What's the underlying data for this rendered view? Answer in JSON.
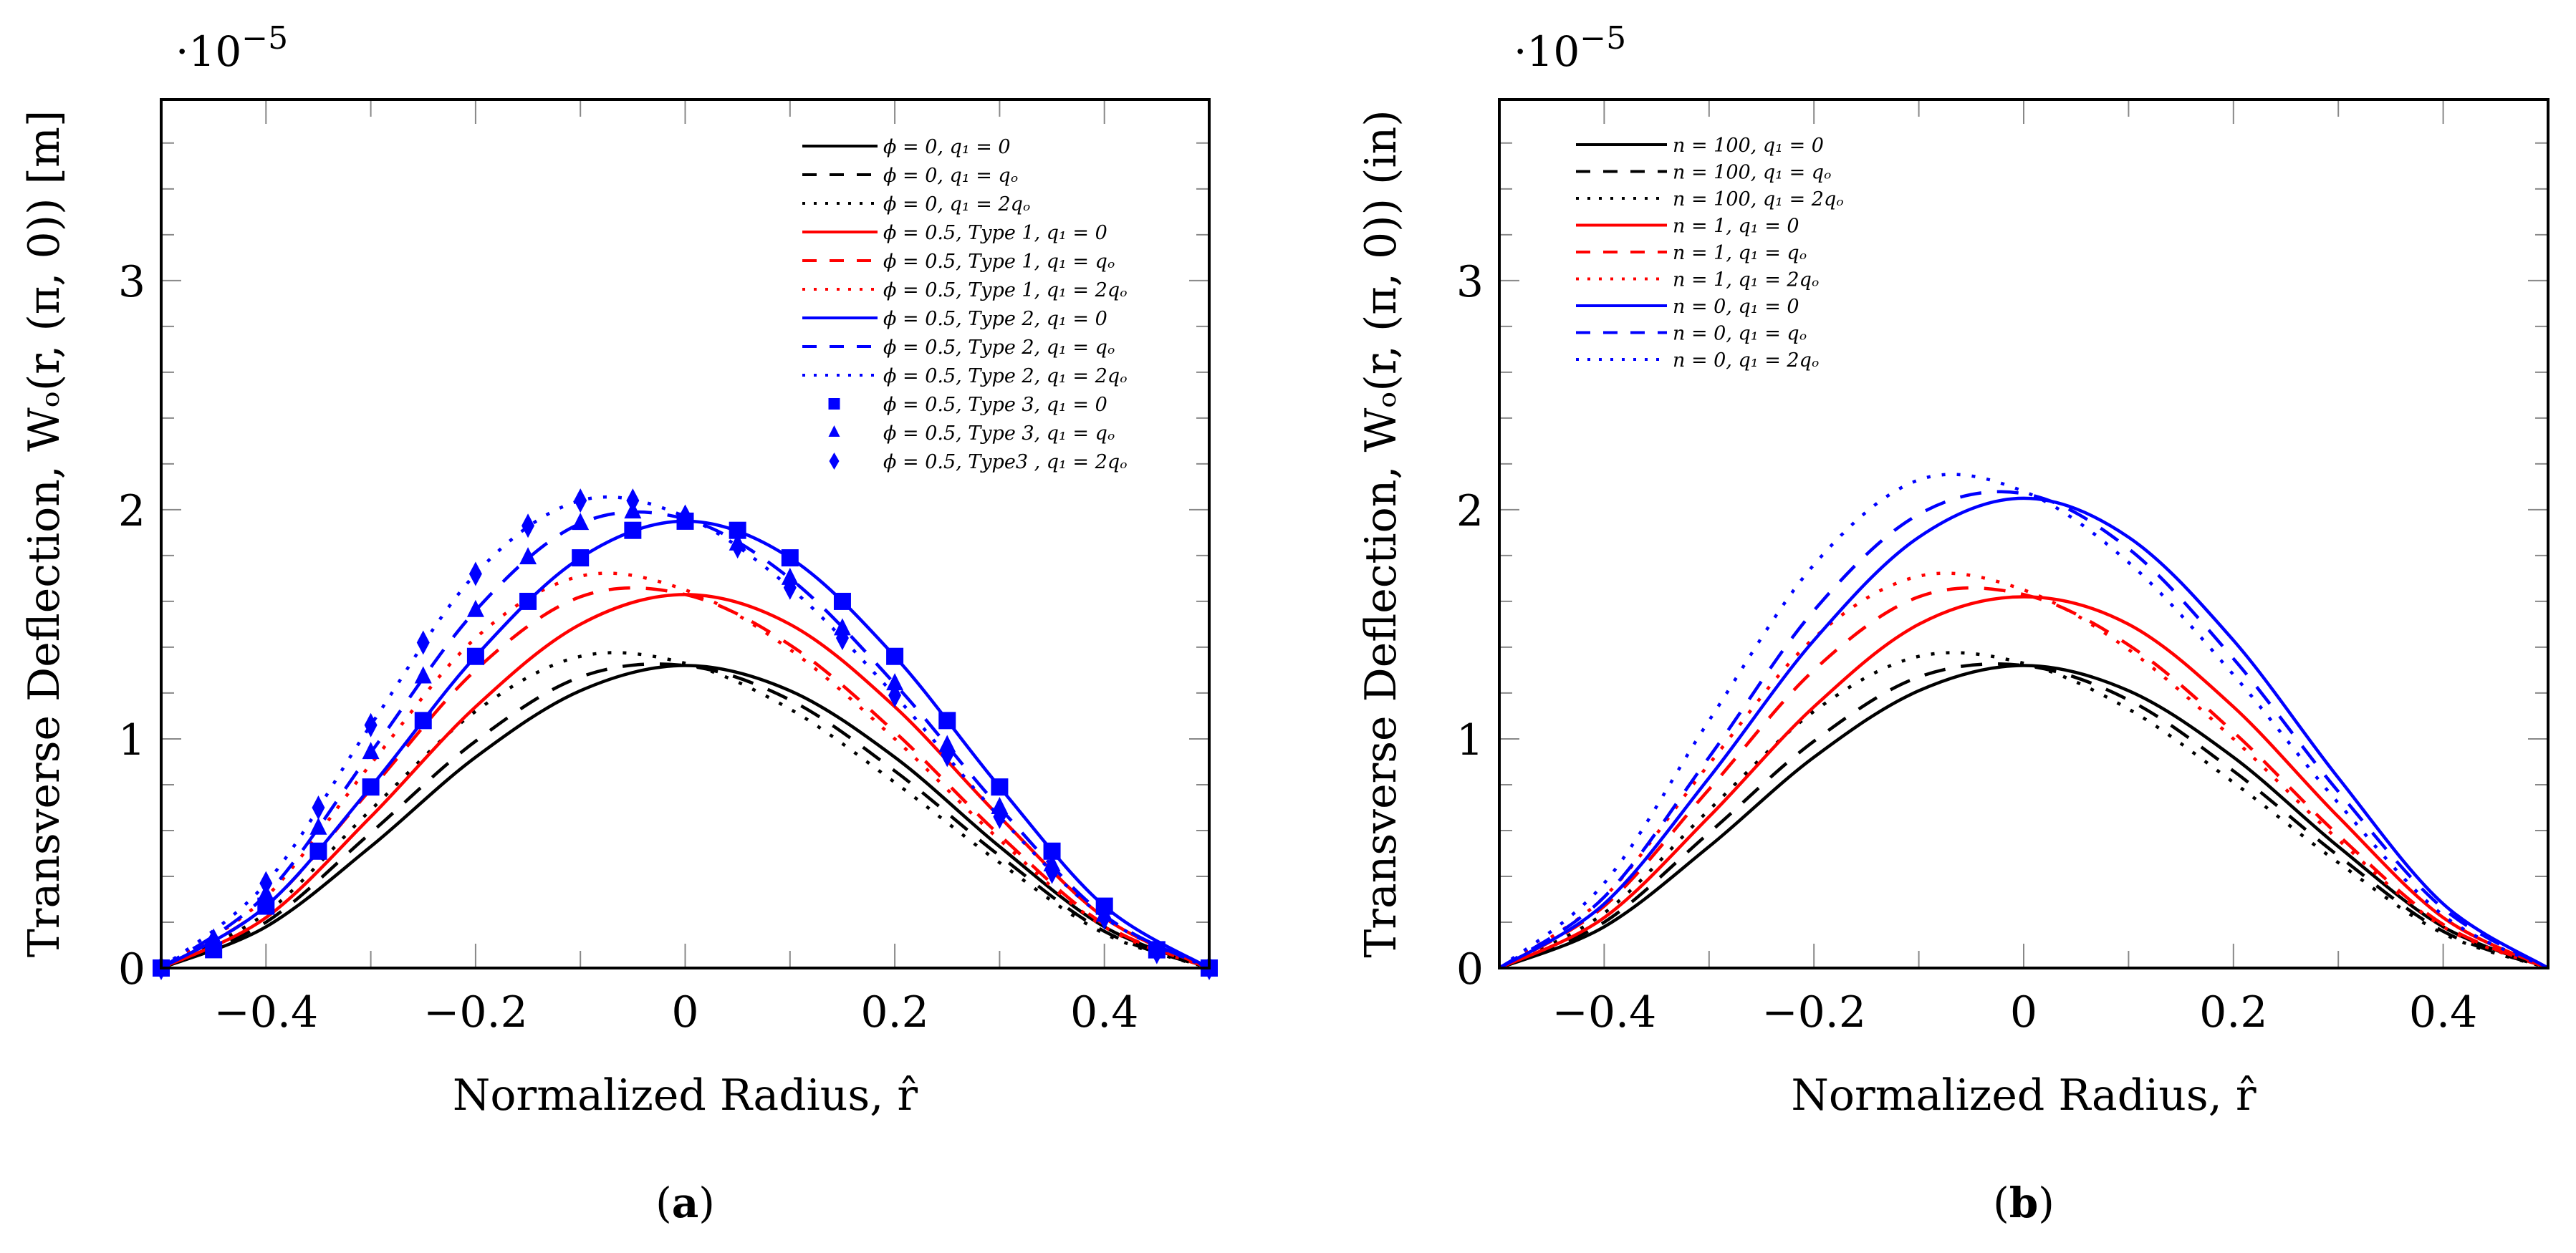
{
  "chart_data": [
    {
      "type": "line",
      "caption_letter": "a",
      "exponent_label": "·10",
      "exponent_power": "−5",
      "xlabel": "Normalized Radius, r̂",
      "ylabel": "Transverse Deflection, Wₒ(r, (π, 0)) [m]",
      "xlim": [
        -0.5,
        0.5
      ],
      "ylim": [
        0,
        3.79
      ],
      "xticks": [
        -0.4,
        -0.2,
        0,
        0.2,
        0.4
      ],
      "xtick_labels": [
        "−0.4",
        "−0.2",
        "0",
        "0.2",
        "0.4"
      ],
      "yticks": [
        0,
        1,
        2,
        3
      ],
      "ytick_labels": [
        "0",
        "1",
        "2",
        "3"
      ],
      "legend_position": "top-right",
      "x": [
        -0.5,
        -0.4,
        -0.3,
        -0.2,
        -0.1,
        0,
        0.1,
        0.2,
        0.3,
        0.4,
        0.5
      ],
      "series": [
        {
          "name": "ϕ = 0, q₁ = 0",
          "color": "#000000",
          "style": "solid",
          "y": [
            0,
            0.18,
            0.53,
            0.92,
            1.21,
            1.32,
            1.21,
            0.92,
            0.53,
            0.18,
            0
          ]
        },
        {
          "name": "ϕ = 0, q₁ = qₒ",
          "color": "#000000",
          "style": "dashed",
          "y": [
            0,
            0.2,
            0.59,
            0.99,
            1.27,
            1.32,
            1.17,
            0.86,
            0.49,
            0.16,
            0
          ]
        },
        {
          "name": "ϕ = 0, q₁ = 2qₒ",
          "color": "#000000",
          "style": "dotted",
          "y": [
            0,
            0.24,
            0.69,
            1.12,
            1.36,
            1.33,
            1.13,
            0.81,
            0.46,
            0.15,
            0
          ]
        },
        {
          "name": "ϕ = 0.5, Type 1, q₁ = 0",
          "color": "#ff0000",
          "style": "solid",
          "y": [
            0,
            0.22,
            0.66,
            1.14,
            1.5,
            1.63,
            1.5,
            1.14,
            0.66,
            0.22,
            0
          ]
        },
        {
          "name": "ϕ = 0.5, Type 1, q₁ = qₒ",
          "color": "#ff0000",
          "style": "dashed",
          "y": [
            0,
            0.27,
            0.78,
            1.3,
            1.62,
            1.63,
            1.41,
            1.03,
            0.58,
            0.19,
            0
          ]
        },
        {
          "name": "ϕ = 0.5, Type 1, q₁ = 2qₒ",
          "color": "#ff0000",
          "style": "dotted",
          "y": [
            0,
            0.31,
            0.89,
            1.44,
            1.71,
            1.65,
            1.39,
            1.0,
            0.56,
            0.18,
            0
          ]
        },
        {
          "name": "ϕ = 0.5, Type 2, q₁ = 0",
          "color": "#0000ff",
          "style": "solid",
          "y": [
            0,
            0.27,
            0.79,
            1.36,
            1.79,
            1.95,
            1.79,
            1.36,
            0.79,
            0.27,
            0
          ]
        },
        {
          "name": "ϕ = 0.5, Type 2, q₁ = qₒ",
          "color": "#0000ff",
          "style": "dashed",
          "y": [
            0,
            0.32,
            0.94,
            1.56,
            1.94,
            1.96,
            1.7,
            1.24,
            0.7,
            0.23,
            0
          ]
        },
        {
          "name": "ϕ = 0.5, Type 2, q₁ = 2qₒ",
          "color": "#0000ff",
          "style": "dotted",
          "y": [
            0,
            0.37,
            1.06,
            1.72,
            2.04,
            1.97,
            1.66,
            1.19,
            0.66,
            0.22,
            0
          ]
        }
      ],
      "marker_x": [
        -0.5,
        -0.45,
        -0.4,
        -0.35,
        -0.3,
        -0.25,
        -0.2,
        -0.15,
        -0.1,
        -0.05,
        0,
        0.05,
        0.1,
        0.15,
        0.2,
        0.25,
        0.3,
        0.35,
        0.4,
        0.45,
        0.5
      ],
      "marker_series": [
        {
          "name": "ϕ = 0.5, Type 3, q₁ = 0",
          "color": "#0000ff",
          "marker": "square",
          "y": [
            0,
            0.08,
            0.27,
            0.51,
            0.79,
            1.08,
            1.36,
            1.6,
            1.79,
            1.91,
            1.95,
            1.91,
            1.79,
            1.6,
            1.36,
            1.08,
            0.79,
            0.51,
            0.27,
            0.08,
            0
          ]
        },
        {
          "name": "ϕ = 0.5, Type 3, q₁ = qₒ",
          "color": "#0000ff",
          "marker": "triangle",
          "y": [
            0,
            0.1,
            0.32,
            0.61,
            0.94,
            1.27,
            1.56,
            1.79,
            1.94,
            1.99,
            1.96,
            1.85,
            1.7,
            1.48,
            1.24,
            0.97,
            0.7,
            0.45,
            0.23,
            0.07,
            0
          ]
        },
        {
          "name": "ϕ = 0.5, Type3 , q₁ = 2qₒ",
          "color": "#0000ff",
          "marker": "diamond",
          "y": [
            0,
            0.12,
            0.37,
            0.7,
            1.06,
            1.42,
            1.72,
            1.93,
            2.04,
            2.04,
            1.97,
            1.84,
            1.66,
            1.44,
            1.19,
            0.93,
            0.66,
            0.42,
            0.22,
            0.07,
            0
          ]
        }
      ]
    },
    {
      "type": "line",
      "caption_letter": "b",
      "exponent_label": "·10",
      "exponent_power": "−5",
      "xlabel": "Normalized Radius, r̂",
      "ylabel": "Transverse Deflection, Wₒ(r, (π, 0)) (in)",
      "xlim": [
        -0.5,
        0.5
      ],
      "ylim": [
        0,
        3.79
      ],
      "xticks": [
        -0.4,
        -0.2,
        0,
        0.2,
        0.4
      ],
      "xtick_labels": [
        "−0.4",
        "−0.2",
        "0",
        "0.2",
        "0.4"
      ],
      "yticks": [
        0,
        1,
        2,
        3
      ],
      "ytick_labels": [
        "0",
        "1",
        "2",
        "3"
      ],
      "legend_position": "top-left",
      "x": [
        -0.5,
        -0.4,
        -0.3,
        -0.2,
        -0.1,
        0,
        0.1,
        0.2,
        0.3,
        0.4,
        0.5
      ],
      "series": [
        {
          "name": "n = 100, q₁ = 0",
          "color": "#000000",
          "style": "solid",
          "y": [
            0,
            0.18,
            0.53,
            0.92,
            1.21,
            1.32,
            1.21,
            0.92,
            0.53,
            0.18,
            0
          ]
        },
        {
          "name": "n = 100, q₁ = qₒ",
          "color": "#000000",
          "style": "dashed",
          "y": [
            0,
            0.2,
            0.59,
            0.99,
            1.27,
            1.32,
            1.17,
            0.86,
            0.49,
            0.16,
            0
          ]
        },
        {
          "name": "n = 100, q₁ = 2qₒ",
          "color": "#000000",
          "style": "dotted",
          "y": [
            0,
            0.24,
            0.69,
            1.12,
            1.36,
            1.33,
            1.13,
            0.81,
            0.46,
            0.15,
            0
          ]
        },
        {
          "name": "n = 1, q₁ = 0",
          "color": "#ff0000",
          "style": "solid",
          "y": [
            0,
            0.22,
            0.66,
            1.14,
            1.5,
            1.62,
            1.5,
            1.14,
            0.66,
            0.22,
            0
          ]
        },
        {
          "name": "n = 1, q₁ = qₒ",
          "color": "#ff0000",
          "style": "dashed",
          "y": [
            0,
            0.27,
            0.78,
            1.3,
            1.62,
            1.63,
            1.41,
            1.03,
            0.58,
            0.19,
            0
          ]
        },
        {
          "name": "n = 1, q₁ = 2qₒ",
          "color": "#ff0000",
          "style": "dotted",
          "y": [
            0,
            0.31,
            0.89,
            1.44,
            1.71,
            1.65,
            1.39,
            1.0,
            0.56,
            0.18,
            0
          ]
        },
        {
          "name": "n = 0, q₁ = 0",
          "color": "#0000ff",
          "style": "solid",
          "y": [
            0,
            0.28,
            0.83,
            1.43,
            1.88,
            2.05,
            1.88,
            1.43,
            0.83,
            0.28,
            0
          ]
        },
        {
          "name": "n = 0, q₁ = qₒ",
          "color": "#0000ff",
          "style": "dashed",
          "y": [
            0,
            0.31,
            0.92,
            1.56,
            1.98,
            2.07,
            1.83,
            1.35,
            0.77,
            0.26,
            0
          ]
        },
        {
          "name": "n = 0, q₁ = 2qₒ",
          "color": "#0000ff",
          "style": "dotted",
          "y": [
            0,
            0.37,
            1.08,
            1.76,
            2.13,
            2.08,
            1.77,
            1.28,
            0.72,
            0.23,
            0
          ]
        }
      ],
      "marker_x": [],
      "marker_series": []
    }
  ]
}
